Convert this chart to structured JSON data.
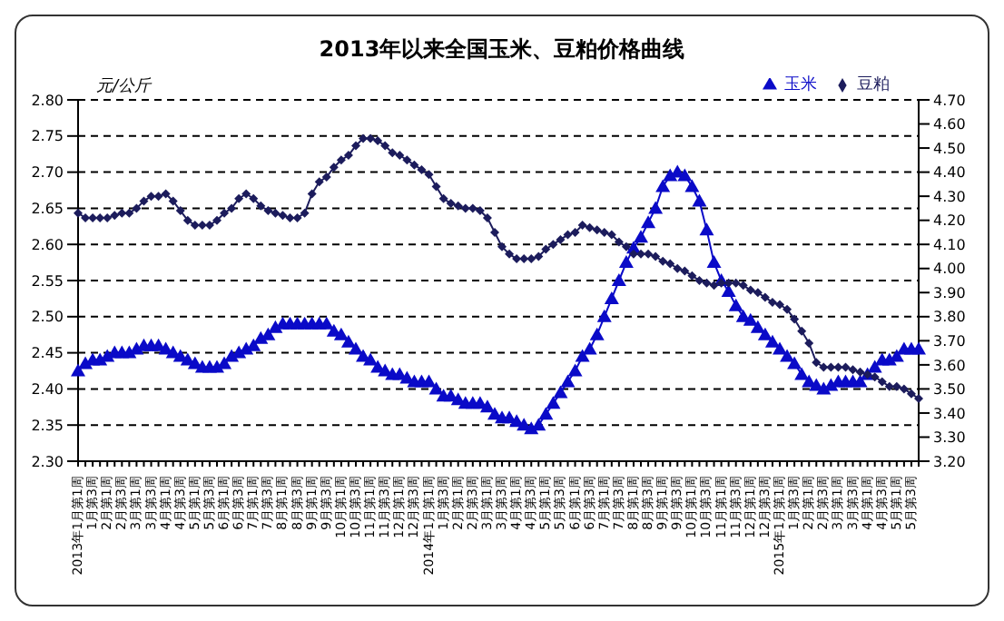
{
  "chart_data": {
    "type": "line",
    "title": "2013年以来全国玉米、豆粕价格曲线",
    "ylabel": "元/公斤",
    "categories": [
      "2013年1月第1周",
      null,
      "1月第3周",
      null,
      "2月第1周",
      null,
      "2月第3周",
      null,
      "3月第1周",
      null,
      "3月第3周",
      null,
      "4月第1周",
      null,
      "4月第3周",
      null,
      "5月第1周",
      null,
      "5月第3周",
      null,
      "6月第1周",
      null,
      "6月第3周",
      null,
      "7月第1周",
      null,
      "7月第3周",
      null,
      "8月第1周",
      null,
      "8月第3周",
      null,
      "9月第1周",
      null,
      "9月第3周",
      null,
      "10月第1周",
      null,
      "10月第3周",
      null,
      "11月第1周",
      null,
      "11月第3周",
      null,
      "12月第1周",
      null,
      "12月第3周",
      null,
      "2014年1月第1周",
      null,
      "1月第3周",
      null,
      "2月第1周",
      null,
      "2月第3周",
      null,
      "3月第1周",
      null,
      "3月第3周",
      null,
      "4月第1周",
      null,
      "4月第3周",
      null,
      "5月第1周",
      null,
      "5月第3周",
      null,
      "6月第1周",
      null,
      "6月第3周",
      null,
      "7月第1周",
      null,
      "7月第3周",
      null,
      "8月第1周",
      null,
      "8月第3周",
      null,
      "9月第1周",
      null,
      "9月第3周",
      null,
      "10月第1周",
      null,
      "10月第3周",
      null,
      "11月第1周",
      null,
      "11月第3周",
      null,
      "12月第1周",
      null,
      "12月第3周",
      null,
      "2015年1月第1周",
      null,
      "1月第3周",
      null,
      "2月第1周",
      null,
      "2月第3周",
      null,
      "3月第1周",
      null,
      "3月第3周",
      null,
      "4月第1周",
      null,
      "4月第3周",
      null,
      "5月第1周",
      null,
      "5月第3周",
      null
    ],
    "series": [
      {
        "name": "玉米",
        "color": "#0a0ac8",
        "marker": "triangle",
        "values": [
          2.425,
          2.435,
          2.44,
          2.44,
          2.445,
          2.45,
          2.45,
          2.45,
          2.455,
          2.46,
          2.46,
          2.46,
          2.455,
          2.45,
          2.445,
          2.44,
          2.435,
          2.43,
          2.43,
          2.43,
          2.435,
          2.445,
          2.45,
          2.455,
          2.46,
          2.47,
          2.475,
          2.485,
          2.49,
          2.49,
          2.49,
          2.49,
          2.49,
          2.49,
          2.49,
          2.48,
          2.475,
          2.465,
          2.455,
          2.445,
          2.44,
          2.43,
          2.425,
          2.42,
          2.42,
          2.415,
          2.41,
          2.41,
          2.41,
          2.4,
          2.39,
          2.39,
          2.385,
          2.38,
          2.38,
          2.38,
          2.375,
          2.365,
          2.36,
          2.36,
          2.355,
          2.35,
          2.345,
          2.35,
          2.365,
          2.38,
          2.395,
          2.41,
          2.425,
          2.445,
          2.455,
          2.475,
          2.5,
          2.525,
          2.55,
          2.575,
          2.595,
          2.61,
          2.63,
          2.65,
          2.68,
          2.695,
          2.7,
          2.695,
          2.68,
          2.66,
          2.62,
          2.575,
          2.55,
          2.535,
          2.515,
          2.5,
          2.495,
          2.485,
          2.475,
          2.465,
          2.455,
          2.445,
          2.435,
          2.42,
          2.41,
          2.405,
          2.4,
          2.405,
          2.41,
          2.41,
          2.41,
          2.41,
          2.42,
          2.43,
          2.44,
          2.44,
          2.445,
          2.455,
          2.455,
          2.455
        ]
      },
      {
        "name": "豆粕",
        "color": "#1c1c5c",
        "marker": "diamond",
        "axis": "y2",
        "values": [
          4.23,
          4.21,
          4.21,
          4.21,
          4.21,
          4.22,
          4.23,
          4.23,
          4.25,
          4.28,
          4.3,
          4.3,
          4.31,
          4.28,
          4.24,
          4.2,
          4.18,
          4.18,
          4.18,
          4.2,
          4.23,
          4.25,
          4.29,
          4.31,
          4.29,
          4.26,
          4.24,
          4.23,
          4.22,
          4.21,
          4.21,
          4.23,
          4.31,
          4.36,
          4.38,
          4.42,
          4.45,
          4.47,
          4.51,
          4.54,
          4.54,
          4.53,
          4.51,
          4.48,
          4.47,
          4.45,
          4.43,
          4.41,
          4.39,
          4.34,
          4.29,
          4.27,
          4.26,
          4.25,
          4.25,
          4.24,
          4.21,
          4.15,
          4.09,
          4.06,
          4.04,
          4.04,
          4.04,
          4.05,
          4.08,
          4.1,
          4.12,
          4.14,
          4.15,
          4.18,
          4.17,
          4.16,
          4.15,
          4.14,
          4.11,
          4.09,
          4.06,
          4.06,
          4.06,
          4.05,
          4.03,
          4.02,
          4,
          3.99,
          3.97,
          3.95,
          3.94,
          3.93,
          3.94,
          3.94,
          3.94,
          3.93,
          3.91,
          3.9,
          3.88,
          3.86,
          3.85,
          3.83,
          3.79,
          3.74,
          3.69,
          3.61,
          3.59,
          3.59,
          3.59,
          3.59,
          3.58,
          3.57,
          3.56,
          3.55,
          3.53,
          3.51,
          3.51,
          3.5,
          3.48,
          3.46
        ]
      }
    ],
    "ylim": [
      2.3,
      2.8
    ],
    "yticks": [
      {
        "value": 2.3,
        "label": "2.30"
      },
      {
        "value": 2.35,
        "label": "2.35"
      },
      {
        "value": 2.4,
        "label": "2.40"
      },
      {
        "value": 2.45,
        "label": "2.45"
      },
      {
        "value": 2.5,
        "label": "2.50"
      },
      {
        "value": 2.55,
        "label": "2.55"
      },
      {
        "value": 2.6,
        "label": "2.60"
      },
      {
        "value": 2.65,
        "label": "2.65"
      },
      {
        "value": 2.7,
        "label": "2.70"
      },
      {
        "value": 2.75,
        "label": "2.75"
      },
      {
        "value": 2.8,
        "label": "2.80"
      }
    ],
    "y2lim": [
      3.2,
      4.7
    ],
    "y2ticks": [
      {
        "value": 3.2,
        "label": "3.20"
      },
      {
        "value": 3.3,
        "label": "3.30"
      },
      {
        "value": 3.4,
        "label": "3.40"
      },
      {
        "value": 3.5,
        "label": "3.50"
      },
      {
        "value": 3.6,
        "label": "3.60"
      },
      {
        "value": 3.7,
        "label": "3.70"
      },
      {
        "value": 3.8,
        "label": "3.80"
      },
      {
        "value": 3.9,
        "label": "3.90"
      },
      {
        "value": 4,
        "label": "4.00"
      },
      {
        "value": 4.1,
        "label": "4.10"
      },
      {
        "value": 4.2,
        "label": "4.20"
      },
      {
        "value": 4.3,
        "label": "4.30"
      },
      {
        "value": 4.4,
        "label": "4.40"
      },
      {
        "value": 4.5,
        "label": "4.50"
      },
      {
        "value": 4.6,
        "label": "4.60"
      },
      {
        "value": 4.7,
        "label": "4.70"
      }
    ],
    "grid": "y",
    "legend": "top right",
    "line_style": "solid"
  }
}
